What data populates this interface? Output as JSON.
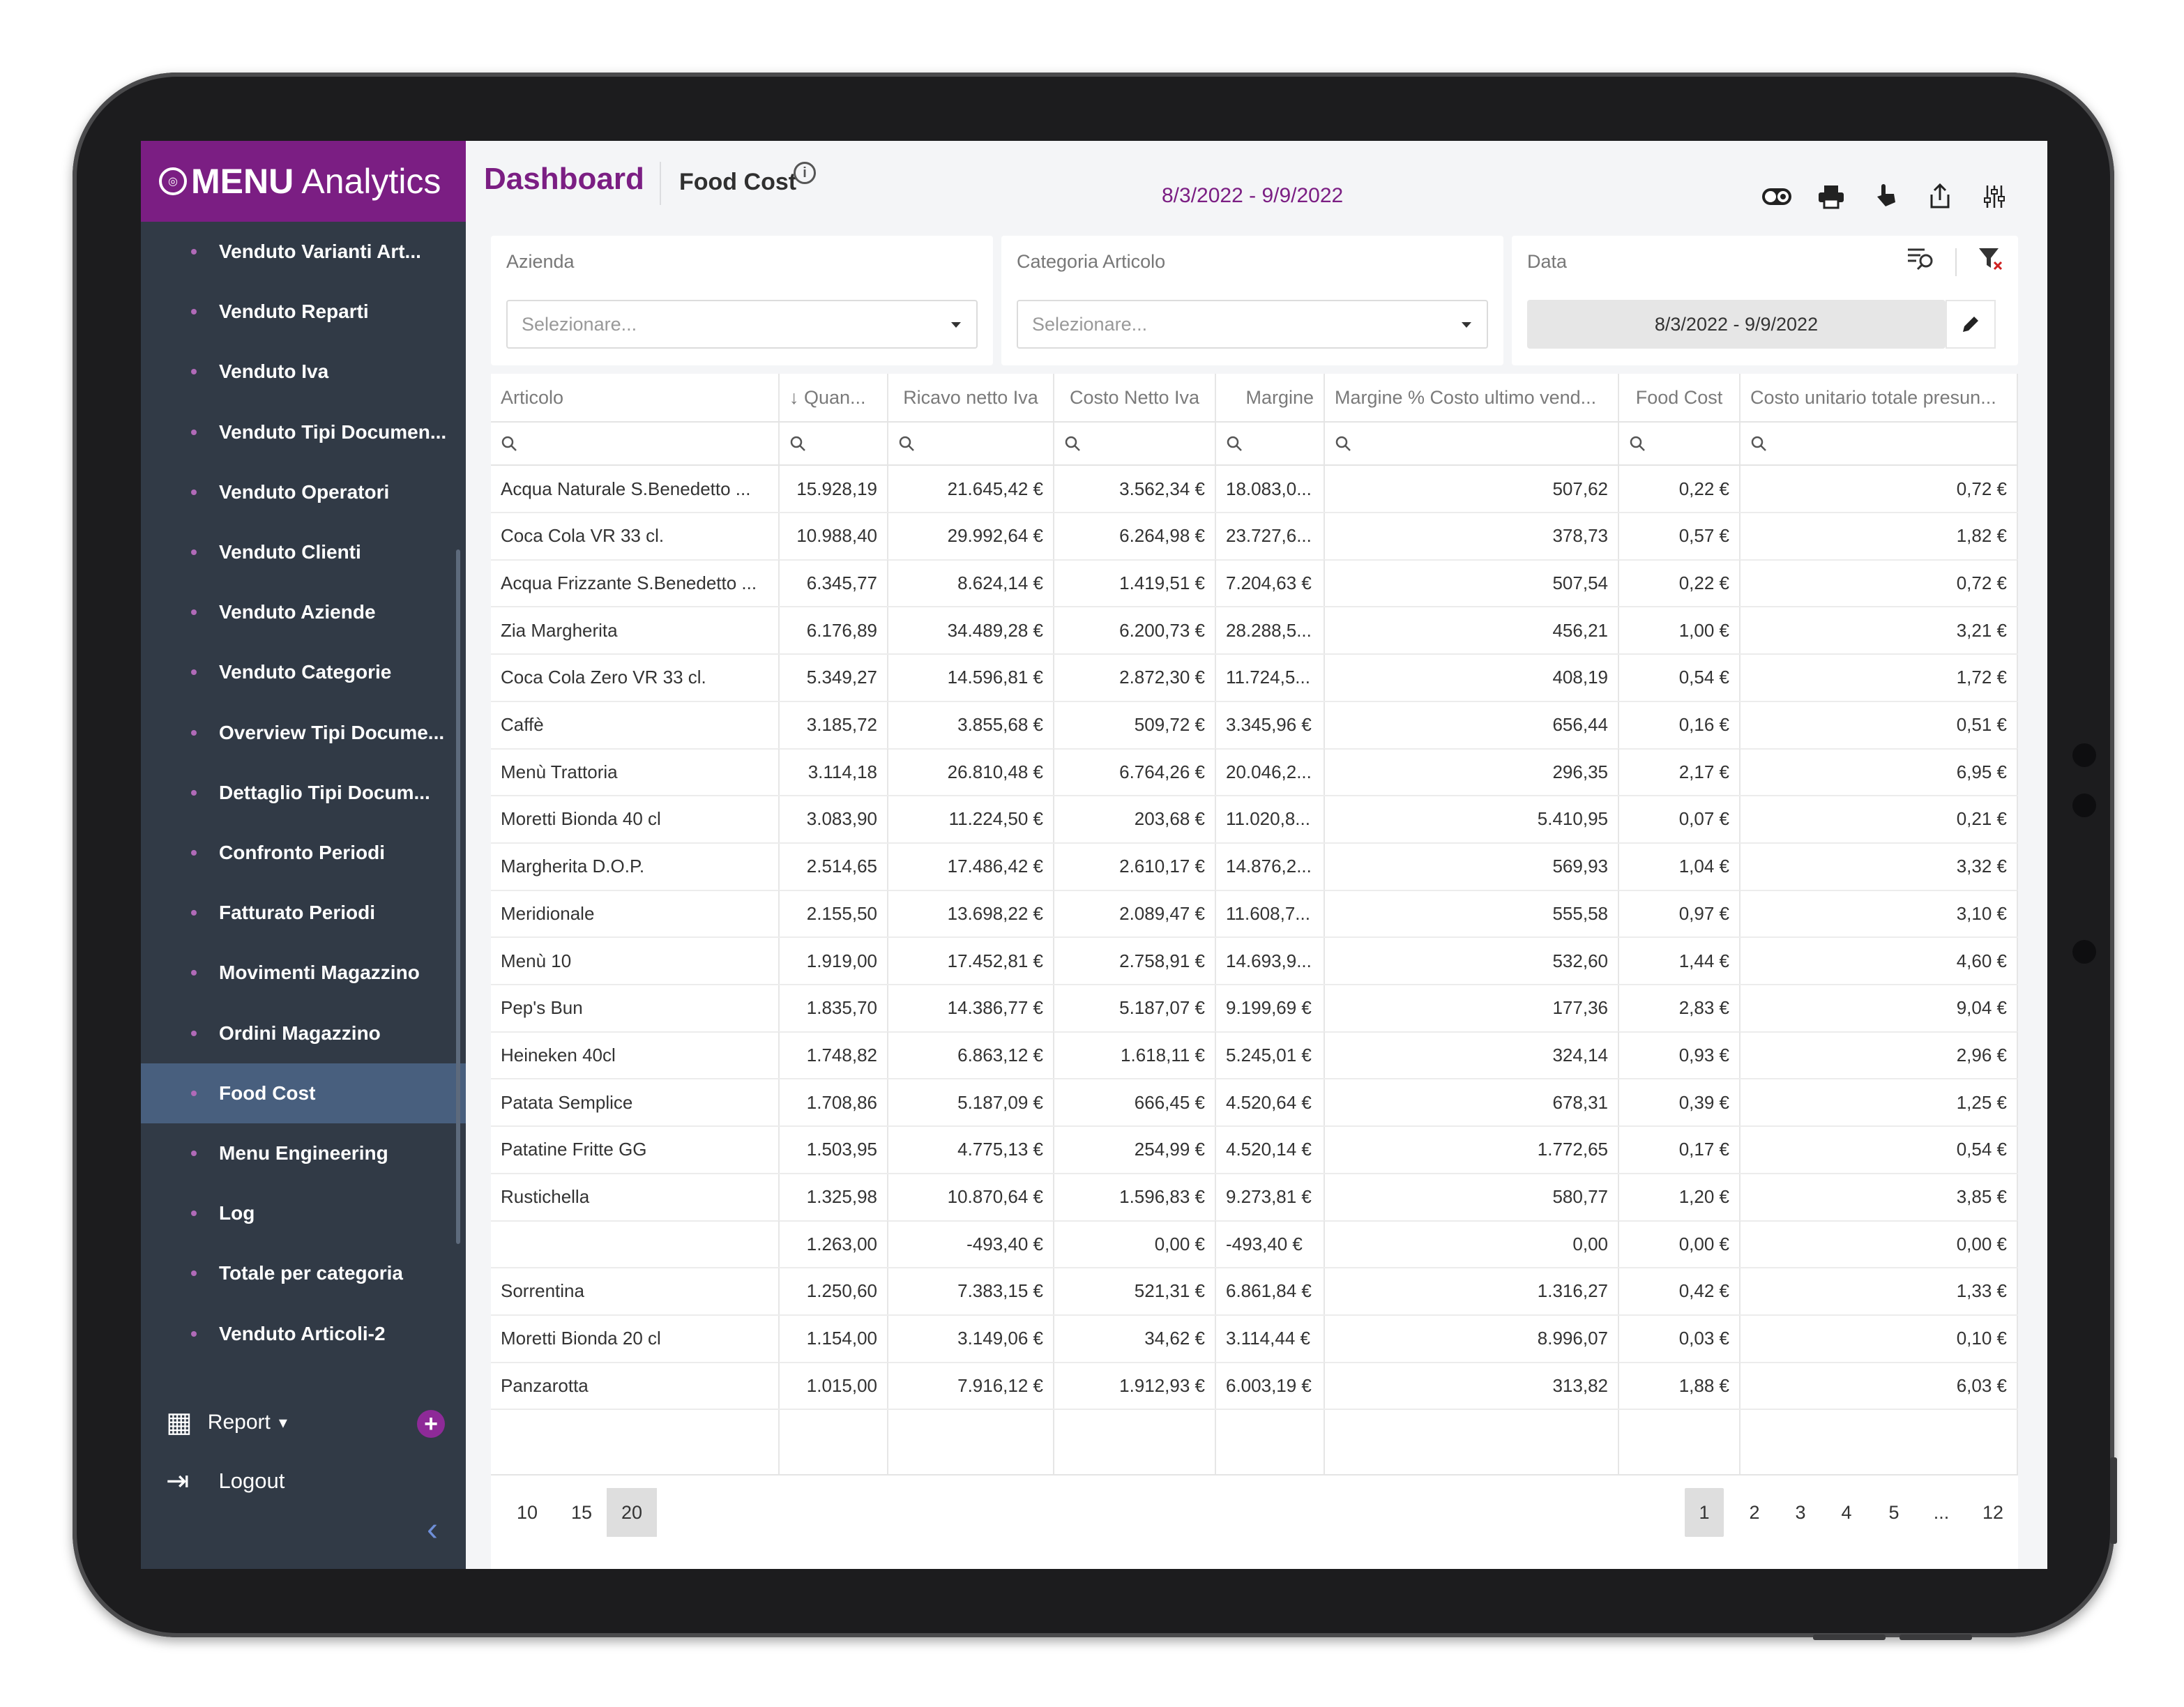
{
  "brand": {
    "logo_glyph": "◎",
    "name_bold": "MENU",
    "name_rest": " Analytics"
  },
  "sidebar": {
    "items": [
      {
        "label": "Venduto Varianti Art...",
        "active": false
      },
      {
        "label": "Venduto Reparti",
        "active": false
      },
      {
        "label": "Venduto Iva",
        "active": false
      },
      {
        "label": "Venduto Tipi Documen...",
        "active": false
      },
      {
        "label": "Venduto Operatori",
        "active": false
      },
      {
        "label": "Venduto Clienti",
        "active": false
      },
      {
        "label": "Venduto Aziende",
        "active": false
      },
      {
        "label": "Venduto Categorie",
        "active": false
      },
      {
        "label": "Overview Tipi Docume...",
        "active": false
      },
      {
        "label": "Dettaglio Tipi Docum...",
        "active": false
      },
      {
        "label": "Confronto Periodi",
        "active": false
      },
      {
        "label": "Fatturato Periodi",
        "active": false
      },
      {
        "label": "Movimenti Magazzino",
        "active": false
      },
      {
        "label": "Ordini Magazzino",
        "active": false
      },
      {
        "label": "Food Cost",
        "active": true
      },
      {
        "label": "Menu Engineering",
        "active": false
      },
      {
        "label": "Log",
        "active": false
      },
      {
        "label": "Totale per categoria",
        "active": false
      },
      {
        "label": "Venduto Articoli-2",
        "active": false
      }
    ],
    "report_label": "Report",
    "report_caret": "▾",
    "report_add": "+",
    "logout_label": "Logout",
    "collapse_glyph": "‹",
    "report_icon": "▦",
    "logout_icon": "⇥"
  },
  "header": {
    "title": "Dashboard",
    "subtitle": "Food Cost",
    "info_glyph": "i",
    "date_range": "8/3/2022 - 9/9/2022",
    "tools": [
      "toggle-icon",
      "print-icon",
      "touch-icon",
      "share-icon",
      "settings-sliders-icon"
    ]
  },
  "filters": {
    "azienda": {
      "label": "Azienda",
      "placeholder": "Selezionare..."
    },
    "categoria": {
      "label": "Categoria Articolo",
      "placeholder": "Selezionare..."
    },
    "data": {
      "label": "Data",
      "value": "8/3/2022 - 9/9/2022"
    }
  },
  "grid": {
    "columns": [
      {
        "label": "Articolo"
      },
      {
        "label": "↓ Quan..."
      },
      {
        "label": "Ricavo netto Iva"
      },
      {
        "label": "Costo Netto Iva"
      },
      {
        "label": "Margine"
      },
      {
        "label": "Margine % Costo ultimo vend..."
      },
      {
        "label": "Food Cost"
      },
      {
        "label": "Costo unitario totale presun..."
      }
    ],
    "search_glyph": "⚲",
    "rows": [
      [
        "Acqua Naturale S.Benedetto ...",
        "15.928,19",
        "21.645,42 €",
        "3.562,34 €",
        "18.083,0...",
        "507,62",
        "0,22 €",
        "0,72 €"
      ],
      [
        "Coca Cola VR 33 cl.",
        "10.988,40",
        "29.992,64 €",
        "6.264,98 €",
        "23.727,6...",
        "378,73",
        "0,57 €",
        "1,82 €"
      ],
      [
        "Acqua Frizzante S.Benedetto ...",
        "6.345,77",
        "8.624,14 €",
        "1.419,51 €",
        "7.204,63 €",
        "507,54",
        "0,22 €",
        "0,72 €"
      ],
      [
        "Zia Margherita",
        "6.176,89",
        "34.489,28 €",
        "6.200,73 €",
        "28.288,5...",
        "456,21",
        "1,00 €",
        "3,21 €"
      ],
      [
        "Coca Cola Zero VR 33 cl.",
        "5.349,27",
        "14.596,81 €",
        "2.872,30 €",
        "11.724,5...",
        "408,19",
        "0,54 €",
        "1,72 €"
      ],
      [
        "Caffè",
        "3.185,72",
        "3.855,68 €",
        "509,72 €",
        "3.345,96 €",
        "656,44",
        "0,16 €",
        "0,51 €"
      ],
      [
        "Menù Trattoria",
        "3.114,18",
        "26.810,48 €",
        "6.764,26 €",
        "20.046,2...",
        "296,35",
        "2,17 €",
        "6,95 €"
      ],
      [
        "Moretti Bionda 40 cl",
        "3.083,90",
        "11.224,50 €",
        "203,68 €",
        "11.020,8...",
        "5.410,95",
        "0,07 €",
        "0,21 €"
      ],
      [
        "Margherita D.O.P.",
        "2.514,65",
        "17.486,42 €",
        "2.610,17 €",
        "14.876,2...",
        "569,93",
        "1,04 €",
        "3,32 €"
      ],
      [
        "Meridionale",
        "2.155,50",
        "13.698,22 €",
        "2.089,47 €",
        "11.608,7...",
        "555,58",
        "0,97 €",
        "3,10 €"
      ],
      [
        "Menù 10",
        "1.919,00",
        "17.452,81 €",
        "2.758,91 €",
        "14.693,9...",
        "532,60",
        "1,44 €",
        "4,60 €"
      ],
      [
        "Pep's Bun",
        "1.835,70",
        "14.386,77 €",
        "5.187,07 €",
        "9.199,69 €",
        "177,36",
        "2,83 €",
        "9,04 €"
      ],
      [
        "Heineken 40cl",
        "1.748,82",
        "6.863,12 €",
        "1.618,11 €",
        "5.245,01 €",
        "324,14",
        "0,93 €",
        "2,96 €"
      ],
      [
        "Patata Semplice",
        "1.708,86",
        "5.187,09 €",
        "666,45 €",
        "4.520,64 €",
        "678,31",
        "0,39 €",
        "1,25 €"
      ],
      [
        "Patatine Fritte GG",
        "1.503,95",
        "4.775,13 €",
        "254,99 €",
        "4.520,14 €",
        "1.772,65",
        "0,17 €",
        "0,54 €"
      ],
      [
        "Rustichella",
        "1.325,98",
        "10.870,64 €",
        "1.596,83 €",
        "9.273,81 €",
        "580,77",
        "1,20 €",
        "3,85 €"
      ],
      [
        "",
        "1.263,00",
        "-493,40 €",
        "0,00 €",
        "-493,40 €",
        "0,00",
        "0,00 €",
        "0,00 €"
      ],
      [
        "Sorrentina",
        "1.250,60",
        "7.383,15 €",
        "521,31 €",
        "6.861,84 €",
        "1.316,27",
        "0,42 €",
        "1,33 €"
      ],
      [
        "Moretti Bionda 20 cl",
        "1.154,00",
        "3.149,06 €",
        "34,62 €",
        "3.114,44 €",
        "8.996,07",
        "0,03 €",
        "0,10 €"
      ],
      [
        "Panzarotta",
        "1.015,00",
        "7.916,12 €",
        "1.912,93 €",
        "6.003,19 €",
        "313,82",
        "1,88 €",
        "6,03 €"
      ]
    ]
  },
  "pager": {
    "sizes": [
      "10",
      "15",
      "20"
    ],
    "selected_size": "20",
    "pages": [
      "1",
      "2",
      "3",
      "4",
      "5",
      "...",
      "12"
    ],
    "current_page": "1"
  }
}
